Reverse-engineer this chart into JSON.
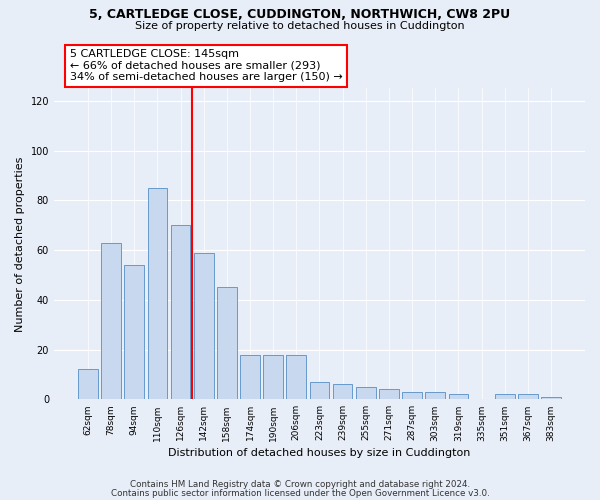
{
  "title": "5, CARTLEDGE CLOSE, CUDDINGTON, NORTHWICH, CW8 2PU",
  "subtitle": "Size of property relative to detached houses in Cuddington",
  "xlabel": "Distribution of detached houses by size in Cuddington",
  "ylabel": "Number of detached properties",
  "bar_color": "#c8d8ee",
  "bar_edge_color": "#6699cc",
  "categories": [
    "62sqm",
    "78sqm",
    "94sqm",
    "110sqm",
    "126sqm",
    "142sqm",
    "158sqm",
    "174sqm",
    "190sqm",
    "206sqm",
    "223sqm",
    "239sqm",
    "255sqm",
    "271sqm",
    "287sqm",
    "303sqm",
    "319sqm",
    "335sqm",
    "351sqm",
    "367sqm",
    "383sqm"
  ],
  "values": [
    12,
    63,
    54,
    85,
    70,
    59,
    45,
    18,
    18,
    18,
    7,
    6,
    5,
    4,
    3,
    3,
    2,
    0,
    2,
    2,
    1
  ],
  "ylim": [
    0,
    125
  ],
  "yticks": [
    0,
    20,
    40,
    60,
    80,
    100,
    120
  ],
  "vline_pos": 4.5,
  "annotation_text": "5 CARTLEDGE CLOSE: 145sqm\n← 66% of detached houses are smaller (293)\n34% of semi-detached houses are larger (150) →",
  "footer_line1": "Contains HM Land Registry data © Crown copyright and database right 2024.",
  "footer_line2": "Contains public sector information licensed under the Open Government Licence v3.0.",
  "bg_color": "#e8eef8",
  "plot_bg_color": "#e8eef8"
}
